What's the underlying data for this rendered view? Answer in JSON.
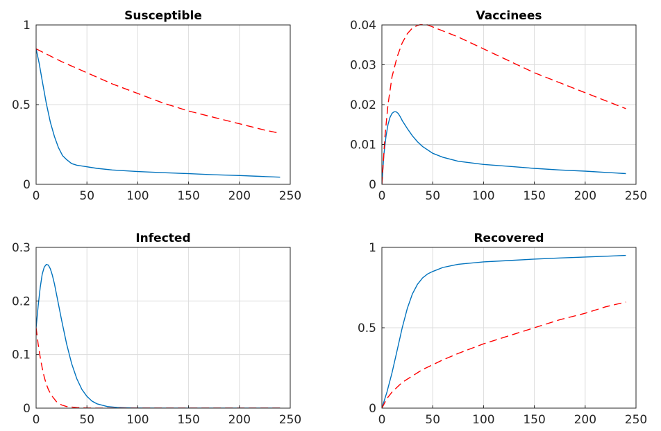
{
  "chart_data": [
    {
      "type": "line",
      "title": "Susceptible",
      "xlim": [
        0,
        250
      ],
      "ylim": [
        0,
        1
      ],
      "xticks": [
        0,
        50,
        100,
        150,
        200,
        250
      ],
      "yticks": [
        0,
        0.5,
        1
      ],
      "xtick_labels": [
        "0",
        "50",
        "100",
        "150",
        "200",
        "250"
      ],
      "ytick_labels": [
        "0",
        "0.5",
        "1"
      ],
      "grid": true,
      "series": [
        {
          "style": "solid",
          "color": "#0072BD",
          "x": [
            0,
            3,
            6,
            10,
            14,
            18,
            22,
            26,
            30,
            35,
            40,
            45,
            50,
            60,
            75,
            100,
            125,
            150,
            175,
            200,
            220,
            240
          ],
          "y": [
            0.85,
            0.76,
            0.65,
            0.51,
            0.39,
            0.3,
            0.23,
            0.18,
            0.155,
            0.13,
            0.12,
            0.115,
            0.11,
            0.1,
            0.09,
            0.08,
            0.073,
            0.067,
            0.06,
            0.055,
            0.05,
            0.045
          ]
        },
        {
          "style": "dashed",
          "color": "#FF0000",
          "x": [
            0,
            25,
            50,
            75,
            100,
            125,
            150,
            175,
            200,
            225,
            240
          ],
          "y": [
            0.85,
            0.77,
            0.7,
            0.63,
            0.57,
            0.51,
            0.46,
            0.42,
            0.38,
            0.34,
            0.32
          ]
        }
      ]
    },
    {
      "type": "line",
      "title": "Vaccinees",
      "xlim": [
        0,
        250
      ],
      "ylim": [
        0,
        0.04
      ],
      "xticks": [
        0,
        50,
        100,
        150,
        200,
        250
      ],
      "yticks": [
        0,
        0.01,
        0.02,
        0.03,
        0.04
      ],
      "xtick_labels": [
        "0",
        "50",
        "100",
        "150",
        "200",
        "250"
      ],
      "ytick_labels": [
        "0",
        "0.01",
        "0.02",
        "0.03",
        "0.04"
      ],
      "grid": true,
      "series": [
        {
          "style": "solid",
          "color": "#0072BD",
          "x": [
            0,
            2,
            4,
            6,
            8,
            10,
            12,
            14,
            16,
            18,
            20,
            25,
            30,
            35,
            40,
            50,
            60,
            75,
            100,
            125,
            150,
            175,
            200,
            220,
            240
          ],
          "y": [
            0,
            0.0075,
            0.012,
            0.015,
            0.0168,
            0.0178,
            0.0182,
            0.0182,
            0.0178,
            0.017,
            0.016,
            0.014,
            0.0122,
            0.0107,
            0.0095,
            0.0078,
            0.0068,
            0.0058,
            0.005,
            0.0045,
            0.004,
            0.0036,
            0.0033,
            0.003,
            0.0027
          ]
        },
        {
          "style": "dashed",
          "color": "#FF0000",
          "x": [
            0,
            3,
            6,
            10,
            15,
            20,
            25,
            30,
            35,
            40,
            45,
            50,
            60,
            75,
            100,
            125,
            150,
            175,
            200,
            220,
            240
          ],
          "y": [
            0,
            0.012,
            0.02,
            0.027,
            0.032,
            0.0355,
            0.0378,
            0.0392,
            0.0399,
            0.0402,
            0.04,
            0.0395,
            0.0385,
            0.037,
            0.034,
            0.031,
            0.028,
            0.0255,
            0.023,
            0.021,
            0.019
          ]
        }
      ]
    },
    {
      "type": "line",
      "title": "Infected",
      "xlim": [
        0,
        250
      ],
      "ylim": [
        0,
        0.3
      ],
      "xticks": [
        0,
        50,
        100,
        150,
        200,
        250
      ],
      "yticks": [
        0,
        0.1,
        0.2,
        0.3
      ],
      "xtick_labels": [
        "0",
        "50",
        "100",
        "150",
        "200",
        "250"
      ],
      "ytick_labels": [
        "0",
        "0.1",
        "0.2",
        "0.3"
      ],
      "grid": true,
      "series": [
        {
          "style": "solid",
          "color": "#0072BD",
          "x": [
            0,
            2,
            4,
            6,
            8,
            10,
            12,
            14,
            16,
            18,
            20,
            25,
            30,
            35,
            40,
            45,
            50,
            55,
            60,
            70,
            80,
            90,
            100,
            125,
            150,
            200,
            240
          ],
          "y": [
            0.15,
            0.19,
            0.225,
            0.25,
            0.263,
            0.268,
            0.267,
            0.26,
            0.248,
            0.232,
            0.213,
            0.165,
            0.12,
            0.083,
            0.055,
            0.035,
            0.022,
            0.013,
            0.008,
            0.003,
            0.0012,
            0.0005,
            0.0002,
            0,
            0,
            0,
            0
          ]
        },
        {
          "style": "dashed",
          "color": "#FF0000",
          "x": [
            0,
            2,
            4,
            6,
            8,
            10,
            12,
            15,
            20,
            25,
            30,
            40,
            50,
            60,
            80,
            100,
            150,
            200,
            240
          ],
          "y": [
            0.15,
            0.12,
            0.095,
            0.075,
            0.058,
            0.045,
            0.035,
            0.024,
            0.012,
            0.006,
            0.003,
            0.001,
            0.0003,
            0,
            0,
            0,
            0,
            0,
            0
          ]
        }
      ]
    },
    {
      "type": "line",
      "title": "Recovered",
      "xlim": [
        0,
        250
      ],
      "ylim": [
        0,
        1
      ],
      "xticks": [
        0,
        50,
        100,
        150,
        200,
        250
      ],
      "yticks": [
        0,
        0.5,
        1
      ],
      "xtick_labels": [
        "0",
        "50",
        "100",
        "150",
        "200",
        "250"
      ],
      "ytick_labels": [
        "0",
        "0.5",
        "1"
      ],
      "grid": true,
      "series": [
        {
          "style": "solid",
          "color": "#0072BD",
          "x": [
            0,
            5,
            10,
            15,
            20,
            25,
            30,
            35,
            40,
            45,
            50,
            60,
            75,
            100,
            125,
            150,
            175,
            200,
            220,
            240
          ],
          "y": [
            0,
            0.1,
            0.22,
            0.36,
            0.5,
            0.62,
            0.71,
            0.77,
            0.81,
            0.835,
            0.85,
            0.875,
            0.895,
            0.91,
            0.918,
            0.927,
            0.934,
            0.94,
            0.945,
            0.95
          ]
        },
        {
          "style": "dashed",
          "color": "#FF0000",
          "x": [
            0,
            5,
            10,
            15,
            20,
            25,
            30,
            40,
            50,
            60,
            75,
            100,
            125,
            150,
            175,
            200,
            220,
            240
          ],
          "y": [
            0,
            0.06,
            0.1,
            0.13,
            0.16,
            0.18,
            0.2,
            0.24,
            0.27,
            0.3,
            0.34,
            0.4,
            0.45,
            0.5,
            0.55,
            0.59,
            0.63,
            0.66
          ]
        }
      ]
    }
  ]
}
